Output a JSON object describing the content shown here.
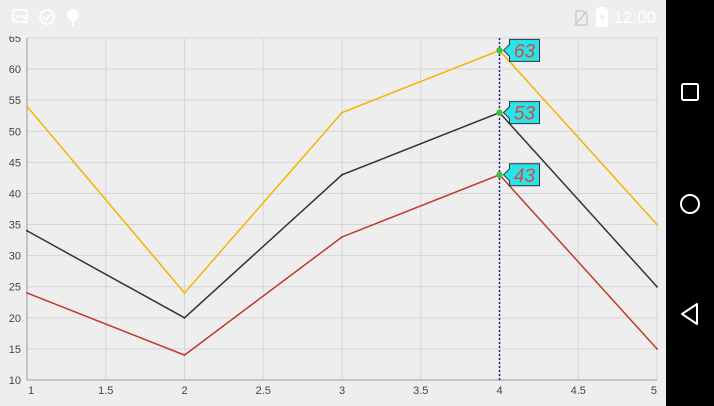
{
  "status_bar": {
    "time": "12:00",
    "icons": [
      "image-icon",
      "sync-icon",
      "android-icon",
      "no-sim-icon",
      "battery-charging-icon"
    ]
  },
  "nav_bar": {
    "buttons": [
      "recents-button",
      "home-button",
      "back-button"
    ]
  },
  "tooltip": {
    "x": 4,
    "labels": [
      "63",
      "53",
      "43"
    ],
    "marker_color": "#40c040",
    "label_bg": "#29e3ea",
    "label_text_color": "#d24b3c",
    "line_color": "#1a1aa0"
  },
  "chart_data": {
    "type": "line",
    "x": [
      1,
      2,
      3,
      4,
      5
    ],
    "xlim": [
      1,
      5
    ],
    "ylim": [
      10,
      65
    ],
    "x_ticks": [
      "1",
      "1.5",
      "2",
      "2.5",
      "3",
      "3.5",
      "4",
      "4.5",
      "5"
    ],
    "y_ticks": [
      "10",
      "15",
      "20",
      "25",
      "30",
      "35",
      "40",
      "45",
      "50",
      "55",
      "60",
      "65"
    ],
    "grid": true,
    "title": "",
    "xlabel": "",
    "ylabel": "",
    "series": [
      {
        "color": "#f5b400",
        "values": [
          54,
          24,
          53,
          63,
          35
        ]
      },
      {
        "color": "#333333",
        "values": [
          34,
          20,
          43,
          53,
          25
        ]
      },
      {
        "color": "#c0392b",
        "values": [
          24,
          14,
          33,
          43,
          15
        ]
      }
    ]
  }
}
